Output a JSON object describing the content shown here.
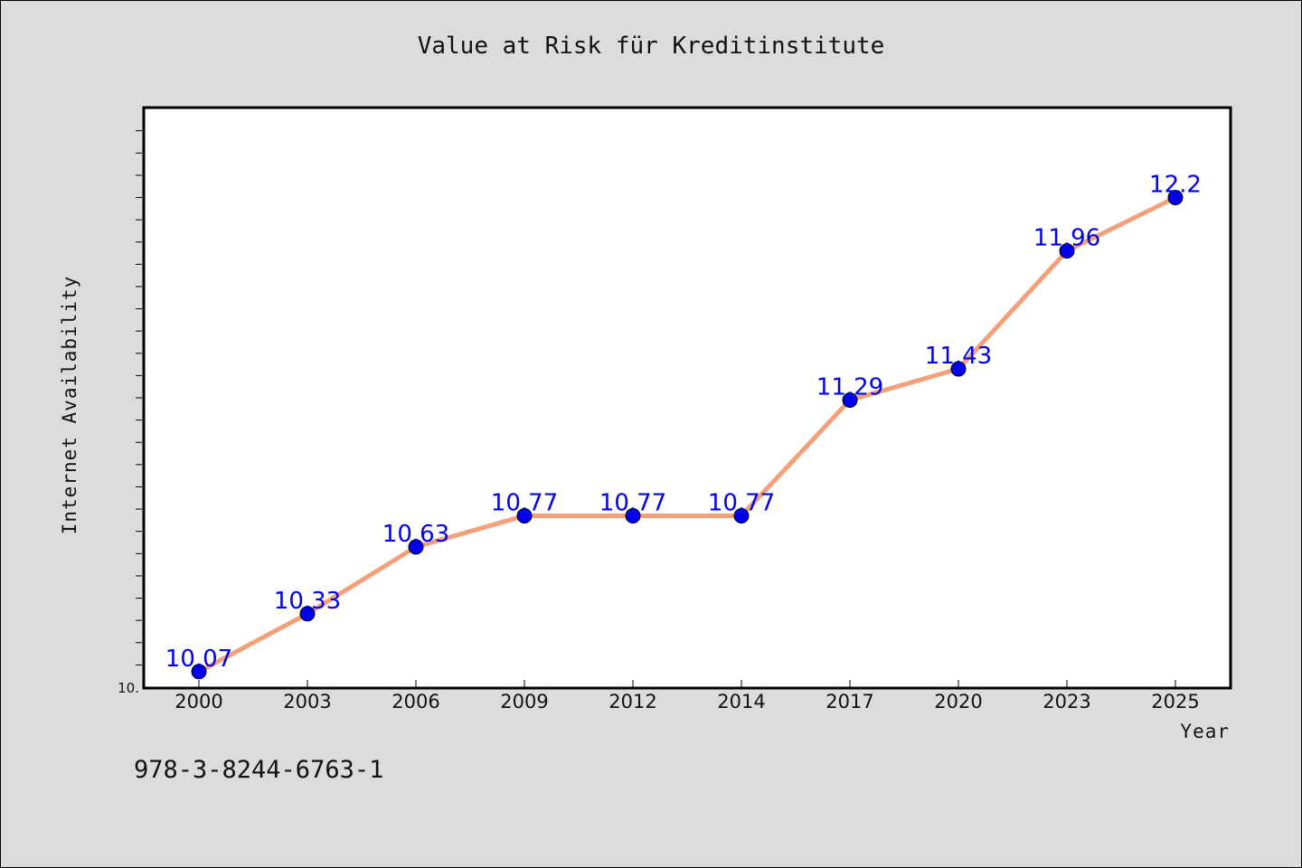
{
  "chart_data": {
    "type": "line",
    "title": "Value at Risk für Kreditinstitute",
    "xlabel": "Year",
    "ylabel": "Internet Availability",
    "x": [
      "2000",
      "2003",
      "2006",
      "2009",
      "2012",
      "2014",
      "2017",
      "2020",
      "2023",
      "2025"
    ],
    "series": [
      {
        "values": [
          10.07,
          10.33,
          10.63,
          10.77,
          10.77,
          10.77,
          11.29,
          11.43,
          11.96,
          12.2
        ],
        "labels": [
          "10.07",
          "10.33",
          "10.63",
          "10.77",
          "10.77",
          "10.77",
          "11.29",
          "11.43",
          "11.96",
          "12.2"
        ],
        "line_color": "#f4a07a",
        "marker_color": "#0000ee"
      }
    ],
    "ylim": [
      10.0,
      12.6
    ],
    "y_tick_labels": [
      {
        "value": 10.0,
        "label": "10."
      }
    ],
    "y_minor_step": 0.1,
    "grid": false,
    "legend": "none"
  },
  "footer": {
    "isbn": "978-3-8244-6763-1"
  },
  "colors": {
    "background": "#dcdcdc",
    "plot_background": "#ffffff"
  }
}
